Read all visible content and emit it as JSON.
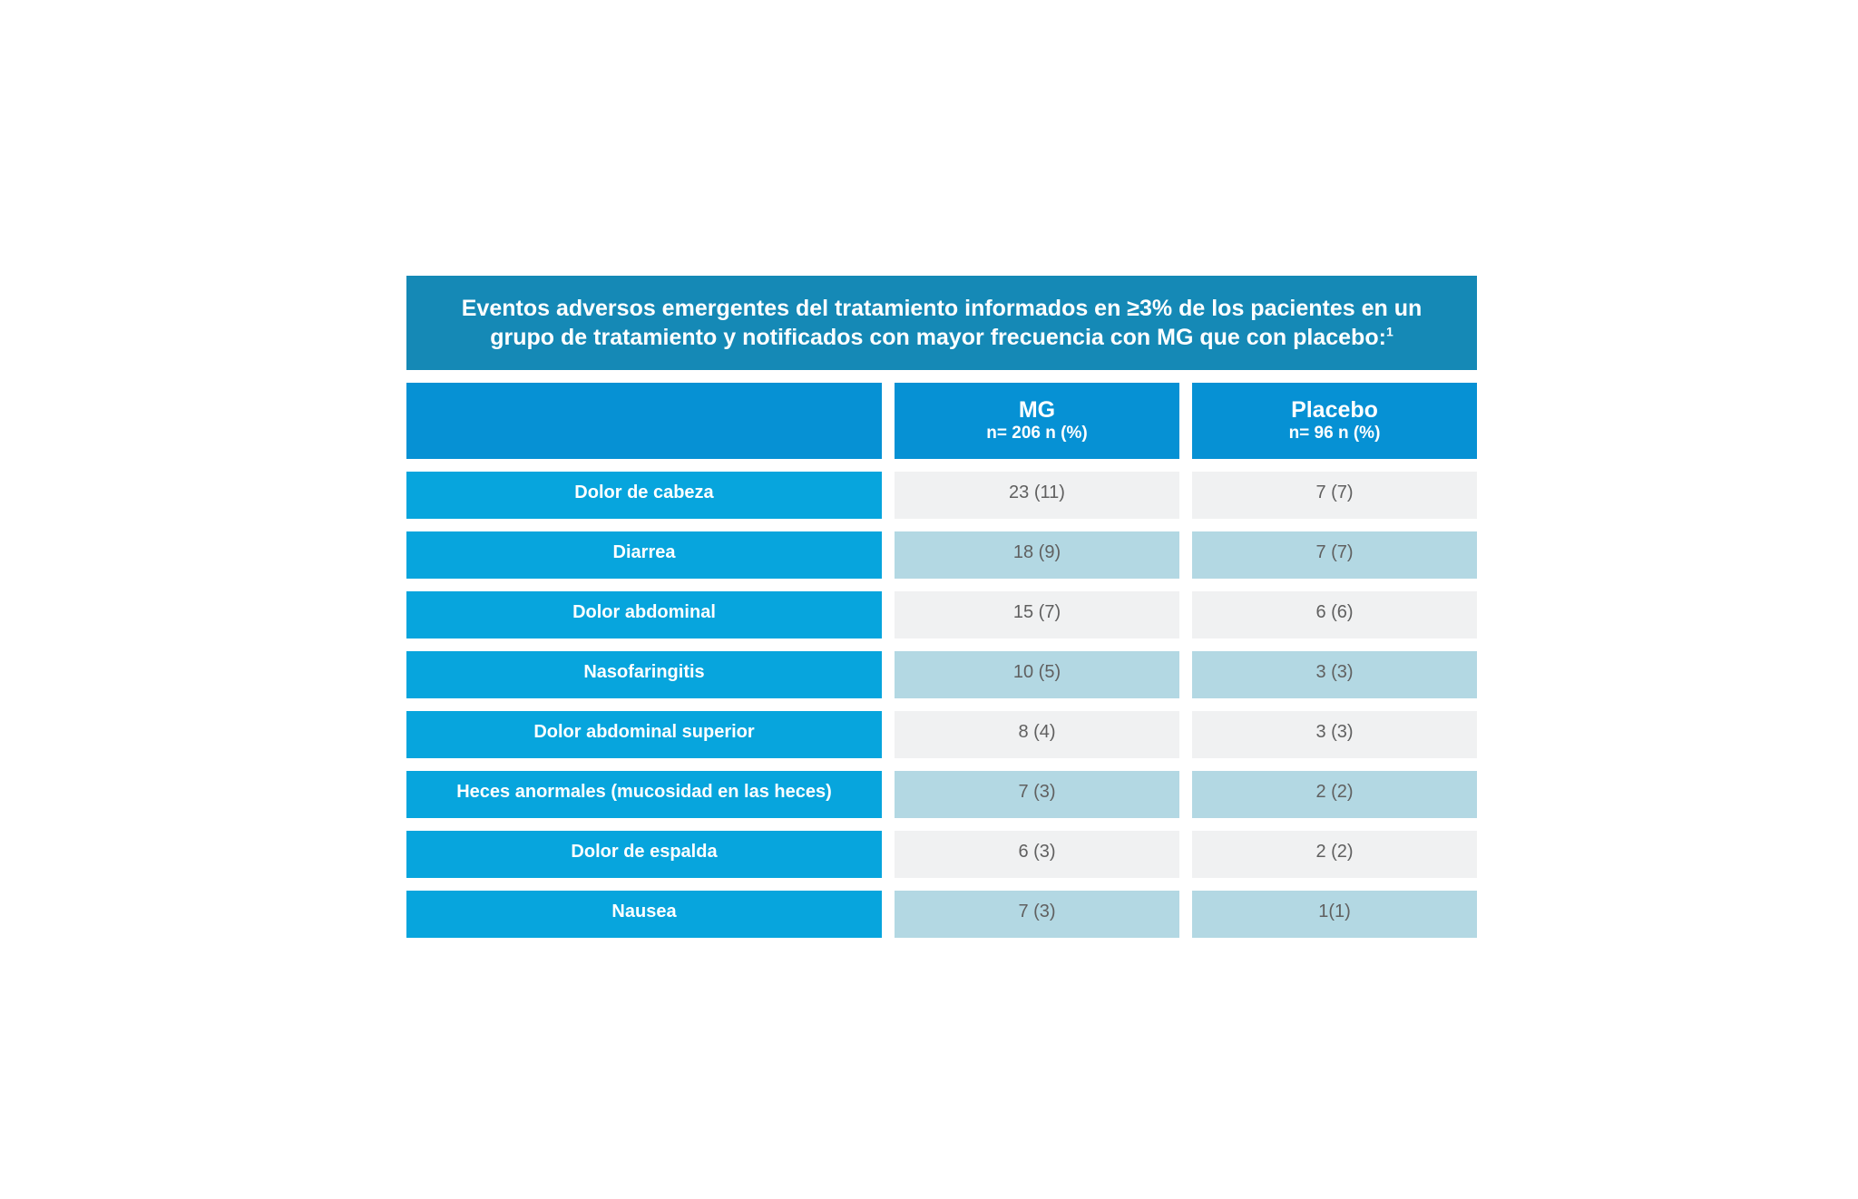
{
  "title": {
    "text": "Eventos adversos emergentes del tratamiento informados en ≥3% de los pacientes en un grupo de tratamiento y notificados con mayor frecuencia con MG que con placebo:",
    "superscript": "1"
  },
  "header": {
    "label_col": "",
    "mg": {
      "name": "MG",
      "sub": "n= 206 n (%)"
    },
    "placebo": {
      "name": "Placebo",
      "sub": "n= 96 n (%)"
    }
  },
  "rows": [
    {
      "label": "Dolor de cabeza",
      "mg": "23 (11)",
      "placebo": "7 (7)"
    },
    {
      "label": "Diarrea",
      "mg": "18 (9)",
      "placebo": "7 (7)"
    },
    {
      "label": "Dolor abdominal",
      "mg": "15 (7)",
      "placebo": "6 (6)"
    },
    {
      "label": "Nasofaringitis",
      "mg": "10 (5)",
      "placebo": "3 (3)"
    },
    {
      "label": "Dolor abdominal superior",
      "mg": "8 (4)",
      "placebo": "3 (3)"
    },
    {
      "label": "Heces anormales (mucosidad en las heces)",
      "mg": "7 (3)",
      "placebo": "2 (2)"
    },
    {
      "label": "Dolor de espalda",
      "mg": "6 (3)",
      "placebo": "2 (2)"
    },
    {
      "label": "Nausea",
      "mg": "7 (3)",
      "placebo": "1(1)"
    }
  ],
  "colors": {
    "title_bg": "#1589b6",
    "header_bg": "#0691d4",
    "label_bg": "#07a5dd",
    "row_light_bg": "#f0f1f2",
    "row_dark_bg": "#b3d8e3",
    "value_text": "#606060"
  }
}
